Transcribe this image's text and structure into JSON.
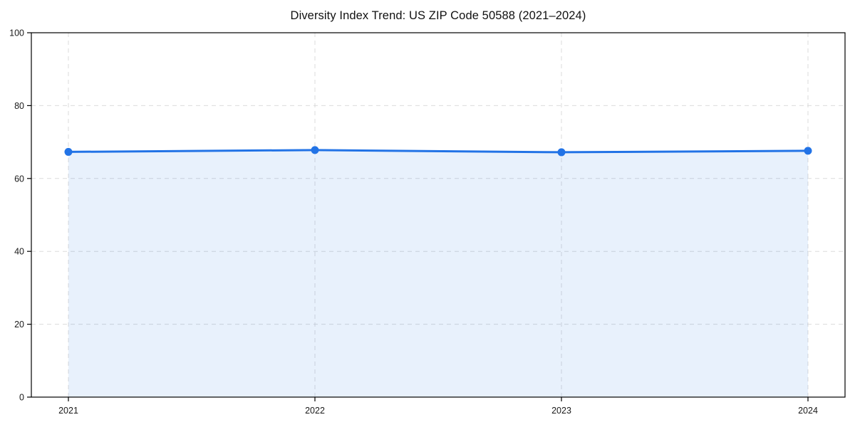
{
  "chart": {
    "title": "Diversity Index Trend: US ZIP Code 50588 (2021–2024)"
  },
  "chart_data": {
    "type": "area",
    "title": "Diversity Index Trend: US ZIP Code 50588 (2021–2024)",
    "x": [
      2021,
      2022,
      2023,
      2024
    ],
    "xticks": [
      "2021",
      "2022",
      "2023",
      "2024"
    ],
    "series": [
      {
        "name": "Diversity Index",
        "values": [
          67.3,
          67.8,
          67.2,
          67.6
        ]
      }
    ],
    "xlabel": "",
    "ylabel": "",
    "ylim": [
      0,
      100
    ],
    "yticks": [
      0,
      20,
      40,
      60,
      80,
      100
    ],
    "grid": true,
    "grid_style": "dashed",
    "legend_position": "none",
    "line_color": "#2273e6",
    "marker_color": "#2273e6",
    "fill_color": "rgba(34,115,230,0.10)",
    "grid_color": "#dbdbdb",
    "frame_color": "#000000",
    "tick_label_color": "#1a1a1a"
  }
}
